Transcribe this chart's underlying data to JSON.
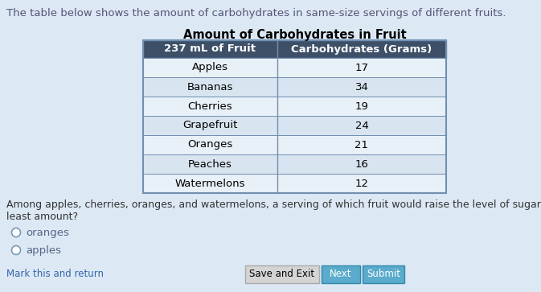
{
  "title_text": "The table below shows the amount of carbohydrates in same-size servings of different fruits.",
  "table_title": "Amount of Carbohydrates in Fruit",
  "col1_header": "237 mL of Fruit",
  "col2_header": "Carbohydrates (Grams)",
  "rows": [
    [
      "Apples",
      "17"
    ],
    [
      "Bananas",
      "34"
    ],
    [
      "Cherries",
      "19"
    ],
    [
      "Grapefruit",
      "24"
    ],
    [
      "Oranges",
      "21"
    ],
    [
      "Peaches",
      "16"
    ],
    [
      "Watermelons",
      "12"
    ]
  ],
  "question_text": "Among apples, cherries, oranges, and watermelons, a serving of which fruit would raise the level of sugar in blood by the\nleast amount?",
  "options": [
    "oranges",
    "apples"
  ],
  "footer_left": "Mark this and return",
  "footer_mid": "Save and Exit",
  "footer_right": "Next",
  "footer_right2": "Submit",
  "bg_color": "#dce8f4",
  "header_bg": "#3d5068",
  "header_text_color": "#ffffff",
  "row_bg_light": "#e8f0f8",
  "row_bg_dark": "#d8e4f0",
  "table_border_color": "#7090b0",
  "title_color": "#555577",
  "title_fontsize": 9.5,
  "table_title_fontsize": 10.5,
  "header_fontsize": 9.5,
  "row_fontsize": 9.5,
  "question_fontsize": 9.0,
  "option_fontsize": 9.5,
  "footer_fontsize": 8.5
}
